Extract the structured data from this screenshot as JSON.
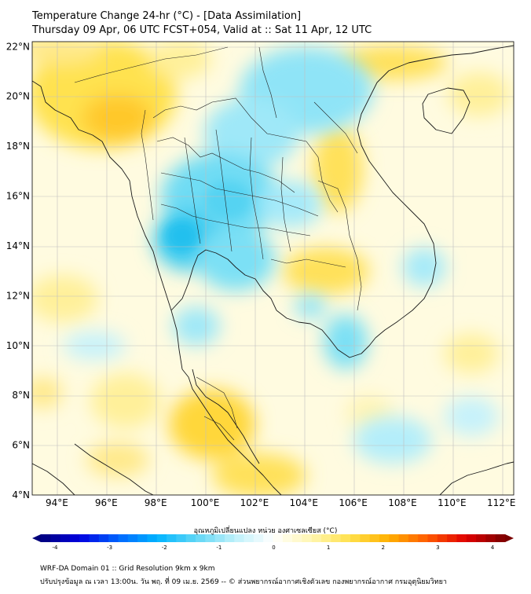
{
  "header": {
    "title": "Temperature Change 24-hr (°C) - [Data Assimilation]",
    "subtitle": "Thursday 09 Apr, 06 UTC FCST+054, Valid at :: Sat 11 Apr, 12 UTC"
  },
  "map": {
    "lat_ticks": [
      "22°N",
      "20°N",
      "18°N",
      "16°N",
      "14°N",
      "12°N",
      "10°N",
      "8°N",
      "6°N",
      "4°N"
    ],
    "lon_ticks": [
      "94°E",
      "96°E",
      "98°E",
      "100°E",
      "102°E",
      "104°E",
      "106°E",
      "108°E",
      "110°E",
      "112°E"
    ],
    "lat_range": [
      4,
      22.2
    ],
    "lon_range": [
      93,
      112.5
    ],
    "gridlines": true
  },
  "colorbar": {
    "label": "อุณหภูมิเปลี่ยนแปลง หน่วย องศาเซลเซียส (°C)",
    "ticks": [
      "-4",
      "-3",
      "-2",
      "-1",
      "0",
      "1",
      "2",
      "3",
      "4"
    ],
    "range": [
      -4,
      4
    ],
    "colors": [
      "#00007a",
      "#0000e0",
      "#0066ff",
      "#00b4ff",
      "#5fd6f5",
      "#bdf0fa",
      "#ffffff",
      "#fff6b0",
      "#ffe04a",
      "#ffb000",
      "#ff5a00",
      "#e00000",
      "#7a0000"
    ]
  },
  "footer": {
    "line1": "WRF-DA Domain 01 :: Grid Resolution 9km x 9km",
    "line2": "ปรับปรุงข้อมูล ณ เวลา 13:00น. วัน พฤ. ที่ 09 เม.ย. 2569 -- © ส่วนพยากรณ์อากาศเชิงตัวเลข กองพยากรณ์อากาศ กรมอุตุนิยมวิทยา"
  }
}
